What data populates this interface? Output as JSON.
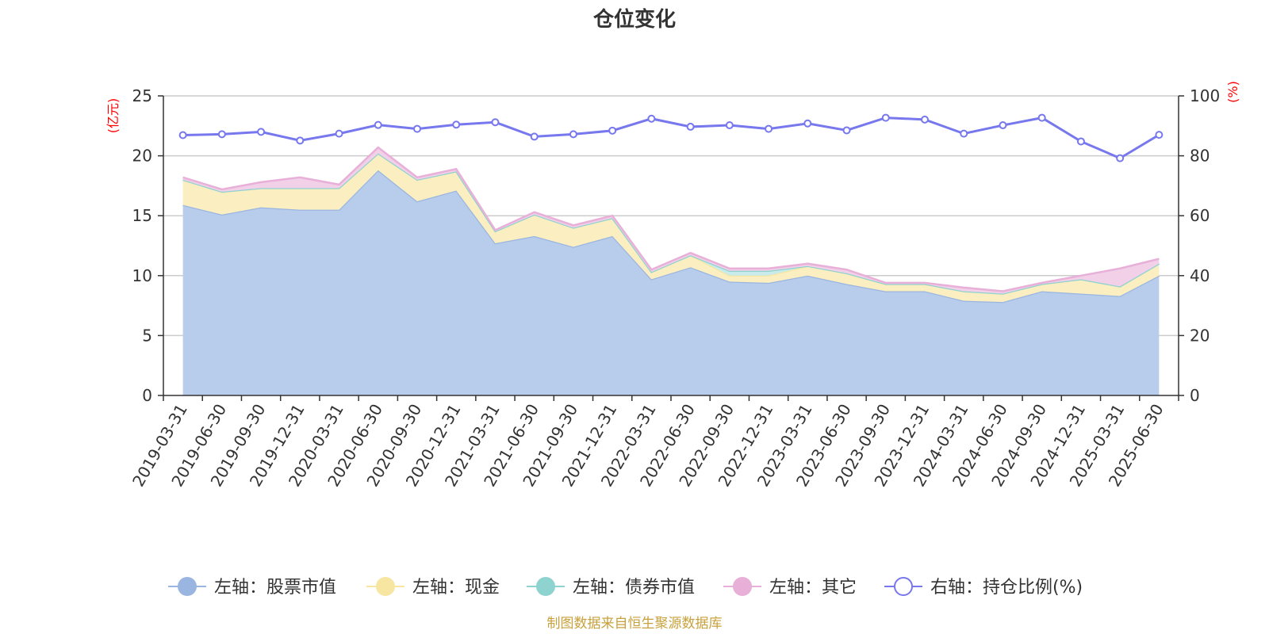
{
  "title": "仓位变化",
  "source": "制图数据来自恒生聚源数据库",
  "chart_data": {
    "type": "area",
    "categories": [
      "2019-03-31",
      "2019-06-30",
      "2019-09-30",
      "2019-12-31",
      "2020-03-31",
      "2020-06-30",
      "2020-09-30",
      "2020-12-31",
      "2021-03-31",
      "2021-06-30",
      "2021-09-30",
      "2021-12-31",
      "2022-03-31",
      "2022-06-30",
      "2022-09-30",
      "2022-12-31",
      "2023-03-31",
      "2023-06-30",
      "2023-09-30",
      "2023-12-31",
      "2024-03-31",
      "2024-06-30",
      "2024-09-30",
      "2024-12-31",
      "2025-03-31",
      "2025-06-30"
    ],
    "left_axis": {
      "unit": "(亿元)",
      "ylim": [
        0,
        25
      ],
      "ticks": [
        0,
        5,
        10,
        15,
        20,
        25
      ]
    },
    "right_axis": {
      "unit": "(%)",
      "ylim": [
        0,
        100
      ],
      "ticks": [
        0,
        20,
        40,
        60,
        80,
        100
      ]
    },
    "grid": true,
    "legend_position": "bottom",
    "series": [
      {
        "name": "左轴：股票市值",
        "axis": "left",
        "stacked": true,
        "color": "#9ab5e0",
        "fill": "#b8cdeb",
        "values": [
          15.9,
          15.1,
          15.7,
          15.5,
          15.5,
          18.8,
          16.2,
          17.1,
          12.7,
          13.3,
          12.4,
          13.3,
          9.7,
          10.7,
          9.5,
          9.4,
          10.0,
          9.3,
          8.7,
          8.7,
          7.9,
          7.8,
          8.7,
          8.5,
          8.3,
          10.0
        ]
      },
      {
        "name": "左轴：现金",
        "axis": "left",
        "stacked": true,
        "color": "#f7e6a1",
        "fill": "#fbefc2",
        "values": [
          2.1,
          1.9,
          1.6,
          1.8,
          1.8,
          1.4,
          1.8,
          1.6,
          1.0,
          1.8,
          1.6,
          1.5,
          0.6,
          1.0,
          0.5,
          0.6,
          0.8,
          0.9,
          0.6,
          0.6,
          0.8,
          0.7,
          0.6,
          1.2,
          0.8,
          1.0
        ]
      },
      {
        "name": "左轴：债券市值",
        "axis": "left",
        "stacked": true,
        "color": "#8fd3d1",
        "fill": "#c9ebea",
        "values": [
          0,
          0,
          0,
          0,
          0,
          0,
          0,
          0,
          0,
          0,
          0,
          0,
          0,
          0,
          0.4,
          0.4,
          0,
          0,
          0,
          0,
          0,
          0,
          0,
          0,
          0,
          0
        ]
      },
      {
        "name": "左轴：其它",
        "axis": "left",
        "stacked": true,
        "color": "#e8b0d8",
        "fill": "#f1d0e8",
        "values": [
          0.2,
          0.2,
          0.5,
          0.9,
          0.3,
          0.5,
          0.2,
          0.2,
          0.1,
          0.2,
          0.2,
          0.2,
          0.2,
          0.2,
          0.2,
          0.2,
          0.2,
          0.3,
          0.1,
          0.1,
          0.3,
          0.2,
          0.1,
          0.3,
          1.5,
          0.4
        ]
      },
      {
        "name": "右轴：持仓比例(%)",
        "axis": "right",
        "stacked": false,
        "color": "#7777ee",
        "values": [
          86.9,
          87.2,
          88.0,
          85.1,
          87.4,
          90.3,
          89.0,
          90.4,
          91.2,
          86.4,
          87.2,
          88.4,
          92.4,
          89.7,
          90.2,
          89.0,
          90.8,
          88.5,
          92.7,
          92.1,
          87.4,
          90.2,
          92.7,
          84.8,
          79.2,
          87.0
        ]
      }
    ]
  }
}
